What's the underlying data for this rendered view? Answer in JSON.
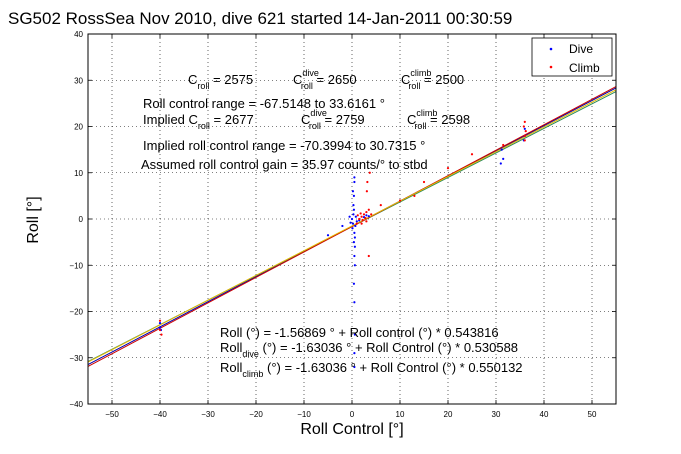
{
  "chart_data": {
    "type": "scatter",
    "title": "SG502 RossSea Nov 2010, dive 621 started 14-Jan-2011 00:30:59",
    "xlabel": "Roll Control [°]",
    "ylabel": "Roll [°]",
    "xlim": [
      -55,
      55
    ],
    "ylim": [
      -40,
      40
    ],
    "xticks": [
      -50,
      -40,
      -30,
      -20,
      -10,
      0,
      10,
      20,
      30,
      40,
      50
    ],
    "yticks": [
      -40,
      -30,
      -20,
      -10,
      0,
      10,
      20,
      30,
      40
    ],
    "grid": true,
    "legend_position": "top-right",
    "legend": [
      {
        "label": "Dive",
        "color": "#0000ff"
      },
      {
        "label": "Climb",
        "color": "#ff0000"
      }
    ],
    "series": [
      {
        "name": "Dive",
        "color": "#0000ff",
        "points": [
          [
            -40,
            -22.5
          ],
          [
            -40,
            -23.5
          ],
          [
            -39.8,
            -24
          ],
          [
            0,
            0
          ],
          [
            0.2,
            -1
          ],
          [
            0.3,
            1
          ],
          [
            0.1,
            -2
          ],
          [
            0.4,
            2
          ],
          [
            0.5,
            -3
          ],
          [
            0.3,
            3
          ],
          [
            0.6,
            -4
          ],
          [
            0.4,
            5
          ],
          [
            0.5,
            8
          ],
          [
            0.4,
            -5
          ],
          [
            0.6,
            -6
          ],
          [
            0.2,
            6
          ],
          [
            0.7,
            -1.5
          ],
          [
            0.8,
            0.5
          ],
          [
            1,
            -0.5
          ],
          [
            -0.5,
            0.5
          ],
          [
            -0.3,
            -0.8
          ],
          [
            0.5,
            9
          ],
          [
            0.5,
            -8
          ],
          [
            0.6,
            -10
          ],
          [
            0.4,
            -14
          ],
          [
            0.5,
            -18
          ],
          [
            0.6,
            -25
          ],
          [
            0.5,
            -29
          ],
          [
            0.5,
            -32
          ],
          [
            1.5,
            -0.3
          ],
          [
            2.5,
            0.4
          ],
          [
            3,
            0.8
          ],
          [
            -2,
            -1.5
          ],
          [
            -5,
            -3.5
          ],
          [
            31,
            12
          ],
          [
            31.5,
            13
          ],
          [
            31.2,
            15
          ],
          [
            36,
            18
          ],
          [
            36,
            19.5
          ],
          [
            35.8,
            17
          ],
          [
            3.5,
            0.6
          ]
        ]
      },
      {
        "name": "Climb",
        "color": "#ff0000",
        "points": [
          [
            -40,
            -22
          ],
          [
            -40,
            -24
          ],
          [
            -39.7,
            -25
          ],
          [
            1,
            -1
          ],
          [
            1.5,
            0
          ],
          [
            2,
            0.5
          ],
          [
            2.5,
            1
          ],
          [
            3,
            1.5
          ],
          [
            3.5,
            2
          ],
          [
            3,
            -0.5
          ],
          [
            2,
            -1
          ],
          [
            1.2,
            0.8
          ],
          [
            3.2,
            8
          ],
          [
            3.1,
            6
          ],
          [
            3.5,
            -8
          ],
          [
            3.7,
            10
          ],
          [
            4,
            1
          ],
          [
            2.8,
            0.2
          ],
          [
            36,
            17
          ],
          [
            36,
            18
          ],
          [
            36.2,
            19
          ],
          [
            35.8,
            20
          ],
          [
            36,
            21
          ],
          [
            31.5,
            16
          ],
          [
            25,
            14
          ],
          [
            20,
            11
          ],
          [
            15,
            8
          ],
          [
            13,
            5
          ],
          [
            10,
            4
          ],
          [
            6,
            3
          ],
          [
            1.8,
            1.2
          ],
          [
            2.2,
            -0.2
          ]
        ]
      }
    ],
    "fit_lines": [
      {
        "intercept": -1.56869,
        "slope": 0.543816,
        "color": "#0000aa"
      },
      {
        "intercept": -1.63036,
        "slope": 0.530588,
        "color": "#2e8b57"
      },
      {
        "intercept": -1.63036,
        "slope": 0.550132,
        "color": "#cc0000"
      },
      {
        "intercept": -1.5,
        "slope": 0.535,
        "color": "#e6b800"
      }
    ]
  },
  "annotations": {
    "croll_sym": "C",
    "croll_sub": "roll",
    "croll_val": " = 2575",
    "cdive_sup": "dive",
    "cdive_val": " = 2650",
    "cclimb_sup": "climb",
    "cclimb_val": " = 2500",
    "range_line": "Roll control range = -67.5148 to 33.6161 °",
    "implied_prefix": "Implied C",
    "implied_val": " = 2677",
    "implied_dive_val": " = 2759",
    "implied_climb_val": " = 2598",
    "implied_range": "Implied roll control range = -70.3994 to 30.7315 °",
    "gain": "Assumed roll control gain = 35.97 counts/° to stbd",
    "fit1": "Roll (°) = -1.56869 ° + Roll control (°) * 0.543816",
    "fit2_a": "Roll",
    "fit2_sub": "dive",
    "fit2_b": " (°) = -1.63036 ° + Roll Control (°) * 0.530588",
    "fit3_a": "Roll",
    "fit3_sub": "climb",
    "fit3_b": " (°) = -1.63036 ° + Roll Control (°) * 0.550132"
  }
}
